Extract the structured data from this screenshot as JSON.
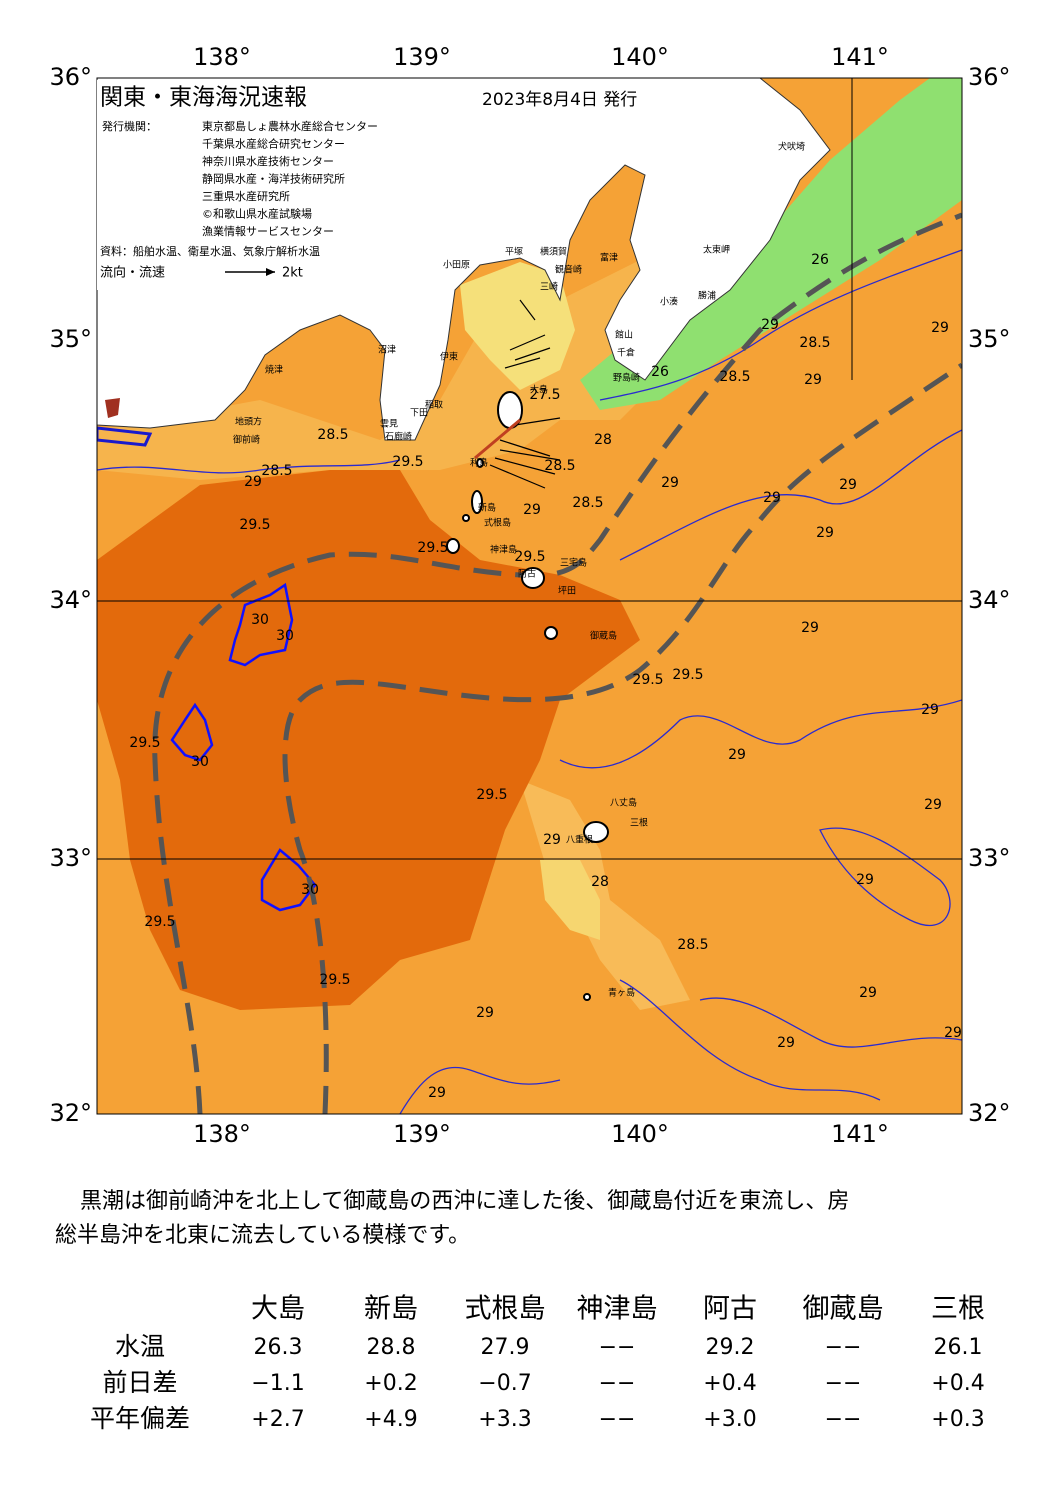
{
  "header": {
    "title": "関東・東海海況速報",
    "date": "2023年8月4日 発行"
  },
  "publishers": {
    "label": "発行機関：",
    "items": [
      "東京都島しょ農林水産総合センター",
      "千葉県水産総合研究センター",
      "神奈川県水産技術センター",
      "静岡県水産・海洋技術研究所",
      "三重県水産研究所",
      "©和歌山県水産試験場",
      "漁業情報サービスセンター"
    ]
  },
  "source": "資料：船舶水温、衛星水温、気象庁解析水温",
  "legend": {
    "label": "流向・流速",
    "scale": "2kt"
  },
  "map": {
    "longitudes": [
      "138°",
      "139°",
      "140°",
      "141°"
    ],
    "latitudes": [
      "36°",
      "35°",
      "34°",
      "33°",
      "32°"
    ],
    "places": [
      "犬吠埼",
      "太東岬",
      "勝浦",
      "小湊",
      "館山",
      "千倉",
      "野島崎",
      "富津",
      "観音崎",
      "横須賀",
      "平塚",
      "三崎",
      "小田原",
      "沼津",
      "伊東",
      "稲取",
      "下田",
      "雲見",
      "石廊崎",
      "焼津",
      "地頭方",
      "御前崎",
      "大島",
      "利島",
      "新島",
      "式根島",
      "神津島",
      "三宅島",
      "阿古",
      "坪田",
      "御蔵島",
      "八丈島",
      "三根",
      "八重根",
      "青ヶ島"
    ],
    "isotherm_labels": [
      "28.5",
      "28.5",
      "29",
      "29.5",
      "29.5",
      "29.5",
      "29.5",
      "29",
      "28.5",
      "28.5",
      "28",
      "27.5",
      "26",
      "28.5",
      "28.5",
      "29",
      "26",
      "29",
      "29",
      "29",
      "29",
      "29",
      "29",
      "29.5",
      "29",
      "29",
      "29",
      "29",
      "29",
      "29",
      "29",
      "29",
      "29",
      "29",
      "29.5",
      "29.5",
      "28.5",
      "28",
      "29",
      "30",
      "30",
      "29.5",
      "30",
      "30",
      "29.5",
      "29.5"
    ]
  },
  "description": [
    "黒潮は御前崎沖を北上して御蔵島の西沖に達した後、御蔵島付近を東流し、房",
    "総半島沖を北東に流去している模様です。"
  ],
  "table": {
    "columns": [
      "大島",
      "新島",
      "式根島",
      "神津島",
      "阿古",
      "御蔵島",
      "三根"
    ],
    "rows": [
      {
        "label": "水温",
        "values": [
          "26.3",
          "28.8",
          "27.9",
          "−−",
          "29.2",
          "−−",
          "26.1"
        ]
      },
      {
        "label": "前日差",
        "values": [
          "−1.1",
          "+0.2",
          "−0.7",
          "−−",
          "+0.4",
          "−−",
          "+0.4"
        ]
      },
      {
        "label": "平年偏差",
        "values": [
          "+2.7",
          "+4.9",
          "+3.3",
          "−−",
          "+3.0",
          "−−",
          "+0.3"
        ]
      }
    ]
  }
}
